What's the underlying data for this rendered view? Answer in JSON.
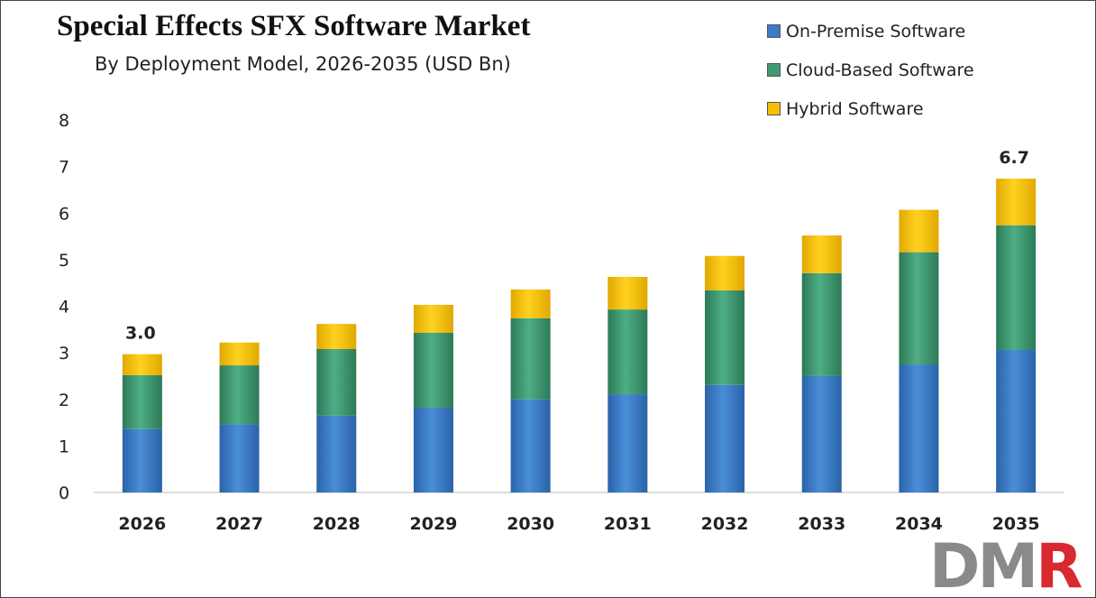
{
  "chart_data": {
    "type": "bar",
    "stacked": true,
    "title": "Special Effects SFX Software Market",
    "subtitle": "By Deployment Model, 2026-2035 (USD Bn)",
    "categories": [
      "2026",
      "2027",
      "2028",
      "2029",
      "2030",
      "2031",
      "2032",
      "2033",
      "2034",
      "2035"
    ],
    "series": [
      {
        "name": "On-Premise Software",
        "color": "#3a7cc8",
        "values": [
          1.36,
          1.47,
          1.65,
          1.82,
          2.0,
          2.11,
          2.31,
          2.5,
          2.75,
          3.06
        ]
      },
      {
        "name": "Cloud-Based Software",
        "color": "#3f9a72",
        "values": [
          1.16,
          1.26,
          1.43,
          1.61,
          1.74,
          1.82,
          2.03,
          2.21,
          2.41,
          2.68
        ]
      },
      {
        "name": "Hybrid Software",
        "color": "#f5c000",
        "values": [
          0.45,
          0.49,
          0.54,
          0.6,
          0.62,
          0.7,
          0.74,
          0.81,
          0.91,
          1.0
        ]
      }
    ],
    "data_labels": [
      {
        "category": "2026",
        "text": "3.0"
      },
      {
        "category": "2035",
        "text": "6.7"
      }
    ],
    "ylim": [
      0,
      8
    ],
    "yticks": [
      "0",
      "1",
      "2",
      "3",
      "4",
      "5",
      "6",
      "7",
      "8"
    ],
    "grid": false,
    "legend": "top-right",
    "xlabel": "",
    "ylabel": ""
  },
  "logo": {
    "text_gray": "DM",
    "text_red": "R",
    "gray": "#8a8a8a",
    "red": "#d9282f"
  }
}
